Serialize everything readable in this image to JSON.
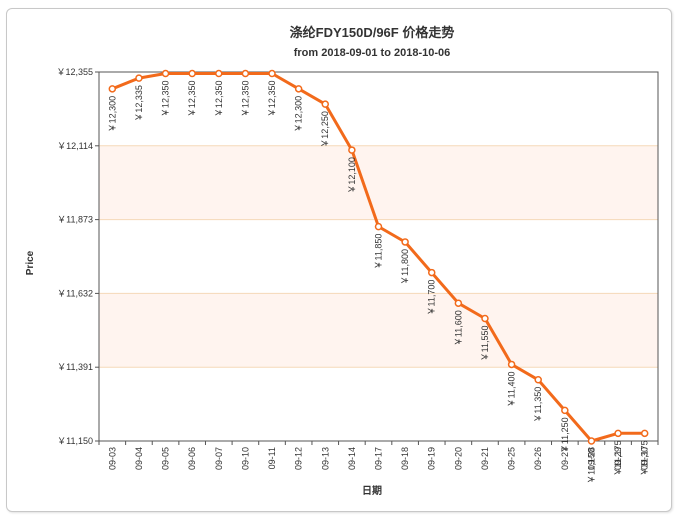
{
  "chart_data": {
    "type": "line",
    "title": "涤纶FDY150D/96F 价格走势",
    "subtitle": "from 2018-09-01 to 2018-10-06",
    "xlabel": "日期",
    "ylabel": "Price",
    "categories": [
      "09-03",
      "09-04",
      "09-05",
      "09-06",
      "09-07",
      "09-10",
      "09-11",
      "09-12",
      "09-13",
      "09-14",
      "09-17",
      "09-18",
      "09-19",
      "09-20",
      "09-21",
      "09-25",
      "09-26",
      "09-27",
      "09-28",
      "09-29",
      "09-30"
    ],
    "series": [
      {
        "values": [
          12300,
          12335,
          12350,
          12350,
          12350,
          12350,
          12350,
          12300,
          12250,
          12100,
          11850,
          11800,
          11700,
          11600,
          11550,
          11400,
          11350,
          11250,
          11150,
          11175,
          11175
        ]
      }
    ],
    "data_labels": [
      "￥12,300",
      "￥12,335",
      "￥12,350",
      "￥12,350",
      "￥12,350",
      "￥12,350",
      "￥12,350",
      "￥12,300",
      "￥12,250",
      "￥12,100",
      "￥11,850",
      "￥11,800",
      "￥11,700",
      "￥11,600",
      "￥11,550",
      "￥11,400",
      "￥11,350",
      "￥11,250",
      "￥11,150",
      "￥11,175",
      "￥11,175"
    ],
    "y_ticks": [
      11150,
      11391,
      11632,
      11873,
      12114,
      12355
    ],
    "y_tick_labels": [
      "￥11,150",
      "￥11,391",
      "￥11,632",
      "￥11,873",
      "￥12,114",
      "￥12,355"
    ],
    "ylim": [
      11150,
      12355
    ],
    "grid": true,
    "legend": "none",
    "colors": {
      "line": "#f26a1b",
      "marker_fill": "#ffffff",
      "band_fill": "#fff4ef",
      "grid": "#f5d9b8",
      "axis": "#555555"
    }
  }
}
